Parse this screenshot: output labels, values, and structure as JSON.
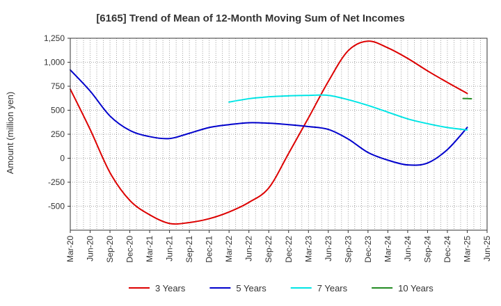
{
  "chart_data": {
    "type": "line",
    "title": "[6165]  Trend of Mean of 12-Month Moving Sum of Net Incomes",
    "xlabel": "",
    "ylabel": "Amount (million yen)",
    "ylim": [
      -750,
      1250
    ],
    "yticks": [
      1250,
      1000,
      750,
      500,
      250,
      0,
      -250,
      -500
    ],
    "ytick_labels": [
      "1,250",
      "1,000",
      "750",
      "500",
      "250",
      "0",
      "-250",
      "-500"
    ],
    "xticks": [
      "Mar-20",
      "Jun-20",
      "Sep-20",
      "Dec-20",
      "Mar-21",
      "Jun-21",
      "Sep-21",
      "Dec-21",
      "Mar-22",
      "Jun-22",
      "Sep-22",
      "Dec-22",
      "Mar-23",
      "Jun-23",
      "Sep-23",
      "Dec-23",
      "Mar-24",
      "Jun-24",
      "Sep-24",
      "Dec-24",
      "Mar-25",
      "Jun-25"
    ],
    "grid": true,
    "legend_position": "bottom",
    "series": [
      {
        "name": "3 Years",
        "color": "#dd0000",
        "points": [
          [
            "Mar-20",
            720
          ],
          [
            "Jun-20",
            300
          ],
          [
            "Sep-20",
            -150
          ],
          [
            "Dec-20",
            -440
          ],
          [
            "Mar-21",
            -590
          ],
          [
            "Jun-21",
            -680
          ],
          [
            "Sep-21",
            -670
          ],
          [
            "Dec-21",
            -630
          ],
          [
            "Mar-22",
            -560
          ],
          [
            "Jun-22",
            -460
          ],
          [
            "Sep-22",
            -310
          ],
          [
            "Dec-22",
            50
          ],
          [
            "Mar-23",
            420
          ],
          [
            "Jun-23",
            800
          ],
          [
            "Sep-23",
            1120
          ],
          [
            "Dec-23",
            1220
          ],
          [
            "Mar-24",
            1150
          ],
          [
            "Jun-24",
            1040
          ],
          [
            "Sep-24",
            910
          ],
          [
            "Dec-24",
            790
          ],
          [
            "Mar-25",
            675
          ]
        ]
      },
      {
        "name": "5 Years",
        "color": "#0000cc",
        "points": [
          [
            "Mar-20",
            920
          ],
          [
            "Jun-20",
            700
          ],
          [
            "Sep-20",
            440
          ],
          [
            "Dec-20",
            290
          ],
          [
            "Mar-21",
            225
          ],
          [
            "Jun-21",
            205
          ],
          [
            "Sep-21",
            260
          ],
          [
            "Dec-21",
            320
          ],
          [
            "Mar-22",
            350
          ],
          [
            "Jun-22",
            370
          ],
          [
            "Sep-22",
            365
          ],
          [
            "Dec-22",
            350
          ],
          [
            "Mar-23",
            330
          ],
          [
            "Jun-23",
            300
          ],
          [
            "Sep-23",
            200
          ],
          [
            "Dec-23",
            60
          ],
          [
            "Mar-24",
            -20
          ],
          [
            "Jun-24",
            -70
          ],
          [
            "Sep-24",
            -50
          ],
          [
            "Dec-24",
            90
          ],
          [
            "Mar-25",
            320
          ]
        ]
      },
      {
        "name": "7 Years",
        "color": "#00e5e5",
        "points": [
          [
            "Mar-22",
            585
          ],
          [
            "Jun-22",
            620
          ],
          [
            "Sep-22",
            640
          ],
          [
            "Dec-22",
            650
          ],
          [
            "Mar-23",
            655
          ],
          [
            "Jun-23",
            655
          ],
          [
            "Sep-23",
            610
          ],
          [
            "Dec-23",
            550
          ],
          [
            "Mar-24",
            480
          ],
          [
            "Jun-24",
            410
          ],
          [
            "Sep-24",
            360
          ],
          [
            "Dec-24",
            320
          ],
          [
            "Mar-25",
            295
          ]
        ]
      },
      {
        "name": "10 Years",
        "color": "#228b22",
        "points": [
          [
            "Mar-25",
            622
          ],
          [
            "Mar-25",
            620
          ]
        ]
      }
    ]
  }
}
